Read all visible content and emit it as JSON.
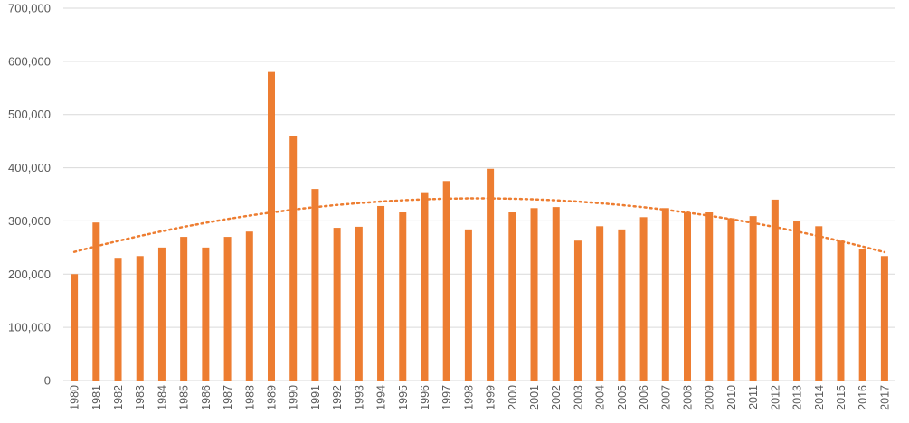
{
  "chart_data": {
    "type": "bar",
    "title": "",
    "xlabel": "",
    "ylabel": "",
    "ylim": [
      0,
      700000
    ],
    "y_ticks": [
      0,
      100000,
      200000,
      300000,
      400000,
      500000,
      600000,
      700000
    ],
    "y_tick_labels": [
      "0",
      "100,000",
      "200,000",
      "300,000",
      "400,000",
      "500,000",
      "600,000",
      "700,000"
    ],
    "grid": true,
    "bar_color": "#ED7D31",
    "trendline": {
      "type": "polynomial",
      "style": "dotted",
      "color": "#ED7D31"
    },
    "categories": [
      "1980",
      "1981",
      "1982",
      "1983",
      "1984",
      "1985",
      "1986",
      "1987",
      "1988",
      "1989",
      "1990",
      "1991",
      "1992",
      "1993",
      "1994",
      "1995",
      "1996",
      "1997",
      "1998",
      "1999",
      "2000",
      "2001",
      "2002",
      "2003",
      "2004",
      "2005",
      "2006",
      "2007",
      "2008",
      "2009",
      "2010",
      "2011",
      "2012",
      "2013",
      "2014",
      "2015",
      "2016",
      "2017"
    ],
    "values": [
      200000,
      297000,
      229000,
      234000,
      250000,
      270000,
      250000,
      270000,
      280000,
      580000,
      459000,
      360000,
      287000,
      289000,
      328000,
      316000,
      354000,
      375000,
      284000,
      398000,
      316000,
      324000,
      326000,
      263000,
      290000,
      284000,
      307000,
      324000,
      316000,
      316000,
      305000,
      309000,
      340000,
      299000,
      290000,
      263000,
      248000,
      234000
    ]
  }
}
